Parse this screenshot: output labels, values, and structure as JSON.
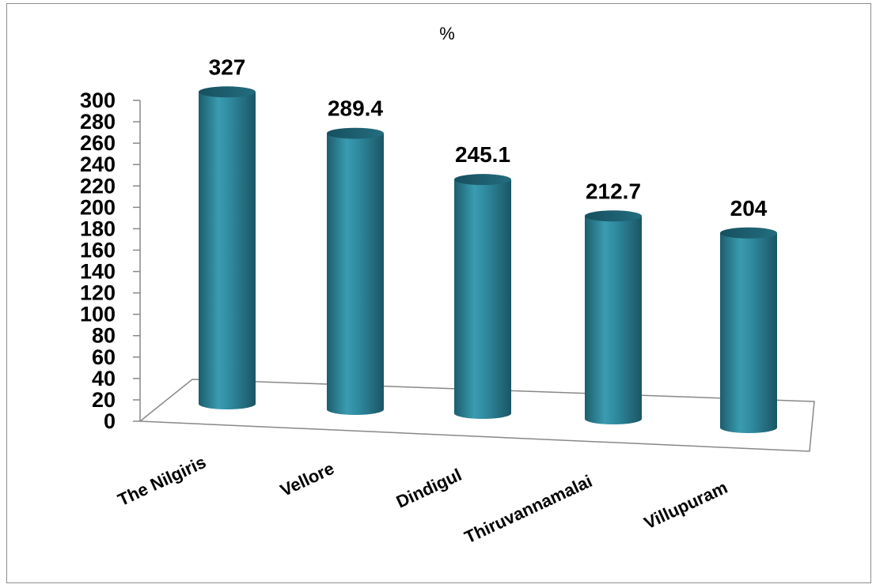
{
  "chart_data": {
    "type": "bar",
    "title": "%",
    "xlabel": "",
    "ylabel": "",
    "categories": [
      "The Nilgiris",
      "Vellore",
      "Dindigul",
      "Thiruvannamalai",
      "Villupuram"
    ],
    "values": [
      327,
      289.4,
      245.1,
      212.7,
      204
    ],
    "data_labels": [
      "327",
      "289.4",
      "245.1",
      "212.7",
      "204"
    ],
    "yticks": [
      0,
      20,
      40,
      60,
      80,
      100,
      120,
      140,
      160,
      180,
      200,
      220,
      240,
      260,
      280,
      300
    ],
    "ylim": [
      0,
      300
    ],
    "grid": false,
    "legend": "none",
    "style": "3d-cylinder",
    "bar_color": "#2f8a9f"
  }
}
